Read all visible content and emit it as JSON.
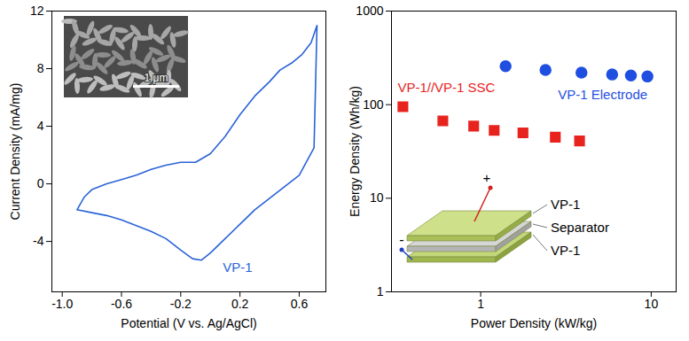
{
  "chart_data": [
    {
      "type": "line",
      "xlabel": "Potential (V vs. Ag/AgCl)",
      "ylabel": "Current Density (mA/mg)",
      "xlim": [
        -1.07,
        0.78
      ],
      "xticks": [
        {
          "value": -1,
          "label": "-1.0"
        },
        -0.6,
        -0.2,
        0.2,
        0.6
      ],
      "ylim": [
        -7.5,
        12
      ],
      "yticks": [
        -4,
        0,
        4,
        8,
        12
      ],
      "annotations": {
        "scale_bar": "1 μm"
      },
      "series": [
        {
          "name": "VP-1",
          "color": "#2a63d8",
          "x": [
            -0.9,
            -0.85,
            -0.8,
            -0.7,
            -0.6,
            -0.5,
            -0.4,
            -0.3,
            -0.2,
            -0.1,
            0.0,
            0.1,
            0.2,
            0.3,
            0.4,
            0.47,
            0.55,
            0.62,
            0.68,
            0.72,
            0.7,
            0.6,
            0.5,
            0.4,
            0.3,
            0.2,
            0.1,
            0.0,
            -0.06,
            -0.12,
            -0.2,
            -0.3,
            -0.4,
            -0.5,
            -0.6,
            -0.7,
            -0.8,
            -0.9
          ],
          "values": [
            -1.8,
            -0.9,
            -0.4,
            0.0,
            0.3,
            0.6,
            1.0,
            1.3,
            1.5,
            1.5,
            2.1,
            3.3,
            4.8,
            6.1,
            7.1,
            7.9,
            8.4,
            9.0,
            9.8,
            11.0,
            2.5,
            0.6,
            -0.2,
            -1.0,
            -1.8,
            -2.8,
            -3.8,
            -4.8,
            -5.3,
            -5.2,
            -4.6,
            -3.8,
            -3.3,
            -2.9,
            -2.5,
            -2.2,
            -2.0,
            -1.8
          ]
        }
      ]
    },
    {
      "type": "scatter",
      "xlabel": "Power Density (kW/kg)",
      "ylabel": "Energy Density (Wh/kg)",
      "log": true,
      "xlim": [
        0.3,
        14
      ],
      "xticks": [
        1,
        10
      ],
      "ylim": [
        1,
        1000
      ],
      "yticks": [
        1,
        10,
        100,
        1000
      ],
      "annotations": {
        "layers": [
          "VP-1",
          "Separator",
          "VP-1"
        ],
        "terminals": [
          "+",
          "-"
        ]
      },
      "series": [
        {
          "name": "VP-1 Electrode",
          "color": "#1f4fe0",
          "marker": "circle",
          "x": [
            1.4,
            2.4,
            3.9,
            5.9,
            7.6,
            9.5
          ],
          "values": [
            257,
            235,
            220,
            210,
            205,
            200
          ]
        },
        {
          "name": "VP-1//VP-1 SSC",
          "color": "#e8231e",
          "marker": "square",
          "x": [
            0.35,
            0.6,
            0.91,
            1.2,
            1.77,
            2.74,
            3.8
          ],
          "values": [
            95,
            67,
            59,
            53,
            50,
            45,
            41
          ]
        }
      ]
    }
  ]
}
